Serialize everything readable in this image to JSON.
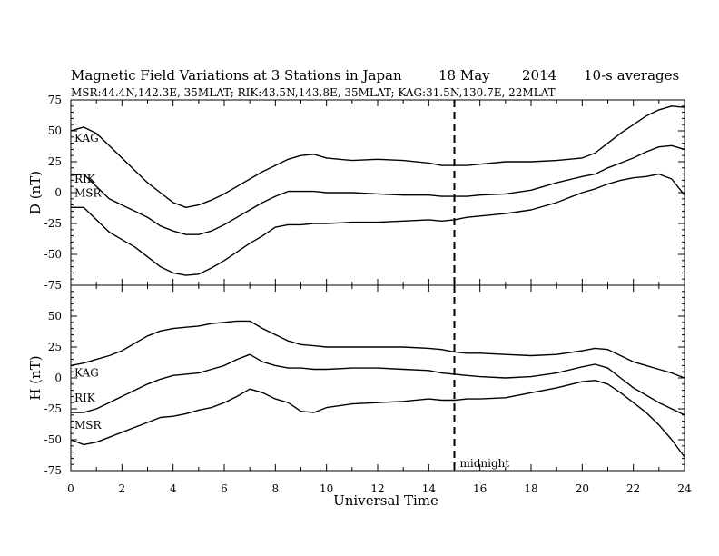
{
  "header": {
    "title": "Magnetic Field Variations at 3 Stations in Japan",
    "date": "18 May",
    "year": "2014",
    "averaging": "10-s averages",
    "stations": "MSR:44.4N,142.3E, 35MLAT;  RIK:43.5N,143.8E, 35MLAT;  KAG:31.5N,130.7E, 22MLAT"
  },
  "chart_data": [
    {
      "type": "line",
      "panel": "top",
      "ylabel": "D (nT)",
      "ylim": [
        -75,
        75
      ],
      "yticks": [
        -75,
        -50,
        -25,
        0,
        25,
        50,
        75
      ],
      "xlim": [
        0,
        24
      ],
      "grid": false,
      "marker_line": {
        "x": 15,
        "style": "dashed",
        "label": ""
      },
      "series": [
        {
          "name": "KAG",
          "x": [
            0,
            0.5,
            1,
            1.5,
            2,
            2.5,
            3,
            3.5,
            4,
            4.5,
            5,
            5.5,
            6,
            6.5,
            7,
            7.5,
            8,
            8.5,
            9,
            9.5,
            10,
            11,
            12,
            13,
            14,
            14.5,
            15,
            15.5,
            16,
            17,
            18,
            19,
            20,
            20.5,
            21,
            21.5,
            22,
            22.5,
            23,
            23.5,
            24
          ],
          "values": [
            50,
            53,
            48,
            38,
            28,
            18,
            8,
            0,
            -8,
            -12,
            -10,
            -6,
            -1,
            5,
            11,
            17,
            22,
            27,
            30,
            31,
            28,
            26,
            27,
            26,
            24,
            22,
            22,
            22,
            23,
            25,
            25,
            26,
            28,
            32,
            40,
            48,
            55,
            62,
            67,
            70,
            69
          ]
        },
        {
          "name": "RIK",
          "x": [
            0,
            0.5,
            1,
            1.5,
            2,
            2.5,
            3,
            3.5,
            4,
            4.5,
            5,
            5.5,
            6,
            6.5,
            7,
            7.5,
            8,
            8.5,
            9,
            9.5,
            10,
            11,
            12,
            13,
            14,
            14.5,
            15,
            15.5,
            16,
            17,
            18,
            19,
            20,
            20.5,
            21,
            21.5,
            22,
            22.5,
            23,
            23.5,
            24
          ],
          "values": [
            14,
            15,
            5,
            -5,
            -10,
            -15,
            -20,
            -27,
            -31,
            -34,
            -34,
            -31,
            -26,
            -20,
            -14,
            -8,
            -3,
            1,
            1,
            1,
            0,
            0,
            -1,
            -2,
            -2,
            -3,
            -3,
            -3,
            -2,
            -1,
            2,
            8,
            13,
            15,
            20,
            24,
            28,
            33,
            37,
            38,
            35
          ]
        },
        {
          "name": "MSR",
          "x": [
            0,
            0.5,
            1,
            1.5,
            2,
            2.5,
            3,
            3.5,
            4,
            4.5,
            5,
            5.5,
            6,
            6.5,
            7,
            7.5,
            8,
            8.5,
            9,
            9.5,
            10,
            11,
            12,
            13,
            14,
            14.5,
            15,
            15.5,
            16,
            17,
            18,
            19,
            20,
            20.5,
            21,
            21.5,
            22,
            22.5,
            23,
            23.5,
            24
          ],
          "values": [
            -12,
            -12,
            -22,
            -32,
            -38,
            -44,
            -52,
            -60,
            -65,
            -67,
            -66,
            -61,
            -55,
            -48,
            -41,
            -35,
            -28,
            -26,
            -26,
            -25,
            -25,
            -24,
            -24,
            -23,
            -22,
            -23,
            -22,
            -20,
            -19,
            -17,
            -14,
            -8,
            0,
            3,
            7,
            10,
            12,
            13,
            15,
            11,
            -2
          ]
        }
      ]
    },
    {
      "type": "line",
      "panel": "bottom",
      "ylabel": "H (nT)",
      "xlabel": "Universal Time",
      "ylim": [
        -75,
        75
      ],
      "yticks": [
        -75,
        -50,
        -25,
        0,
        25,
        50
      ],
      "xlim": [
        0,
        24
      ],
      "xticks": [
        0,
        2,
        4,
        6,
        8,
        10,
        12,
        14,
        16,
        18,
        20,
        22,
        24
      ],
      "grid": false,
      "marker_line": {
        "x": 15,
        "style": "dashed",
        "label": "midnight"
      },
      "series": [
        {
          "name": "KAG",
          "x": [
            0,
            0.5,
            1,
            1.5,
            2,
            2.5,
            3,
            3.5,
            4,
            4.5,
            5,
            5.5,
            6,
            6.5,
            7,
            7.5,
            8,
            8.5,
            9,
            9.5,
            10,
            11,
            12,
            13,
            14,
            14.5,
            15,
            15.5,
            16,
            17,
            18,
            19,
            20,
            20.5,
            21,
            21.5,
            22,
            22.5,
            23,
            23.5,
            24
          ],
          "values": [
            10,
            12,
            15,
            18,
            22,
            28,
            34,
            38,
            40,
            41,
            42,
            44,
            45,
            46,
            46,
            40,
            35,
            30,
            27,
            26,
            25,
            25,
            25,
            25,
            24,
            23,
            21,
            20,
            20,
            19,
            18,
            19,
            22,
            24,
            23,
            18,
            13,
            10,
            7,
            4,
            0
          ]
        },
        {
          "name": "RIK",
          "x": [
            0,
            0.5,
            1,
            1.5,
            2,
            2.5,
            3,
            3.5,
            4,
            4.5,
            5,
            5.5,
            6,
            6.5,
            7,
            7.5,
            8,
            8.5,
            9,
            9.5,
            10,
            11,
            12,
            13,
            14,
            14.5,
            15,
            15.5,
            16,
            17,
            18,
            19,
            20,
            20.5,
            21,
            21.5,
            22,
            22.5,
            23,
            23.5,
            24
          ],
          "values": [
            -28,
            -28,
            -25,
            -20,
            -15,
            -10,
            -5,
            -1,
            2,
            3,
            4,
            7,
            10,
            15,
            19,
            13,
            10,
            8,
            8,
            7,
            7,
            8,
            8,
            7,
            6,
            4,
            3,
            2,
            1,
            0,
            1,
            4,
            9,
            11,
            8,
            0,
            -8,
            -14,
            -20,
            -25,
            -30
          ]
        },
        {
          "name": "MSR",
          "x": [
            0,
            0.5,
            1,
            1.5,
            2,
            2.5,
            3,
            3.5,
            4,
            4.5,
            5,
            5.5,
            6,
            6.5,
            7,
            7.5,
            8,
            8.5,
            9,
            9.5,
            10,
            11,
            12,
            13,
            14,
            14.5,
            15,
            15.5,
            16,
            17,
            18,
            19,
            20,
            20.5,
            21,
            21.5,
            22,
            22.5,
            23,
            23.5,
            24
          ],
          "values": [
            -50,
            -54,
            -52,
            -48,
            -44,
            -40,
            -36,
            -32,
            -31,
            -29,
            -26,
            -24,
            -20,
            -15,
            -9,
            -12,
            -17,
            -20,
            -27,
            -28,
            -24,
            -21,
            -20,
            -19,
            -17,
            -18,
            -18,
            -17,
            -17,
            -16,
            -12,
            -8,
            -3,
            -2,
            -5,
            -12,
            -20,
            -28,
            -38,
            -50,
            -64
          ]
        }
      ]
    }
  ]
}
